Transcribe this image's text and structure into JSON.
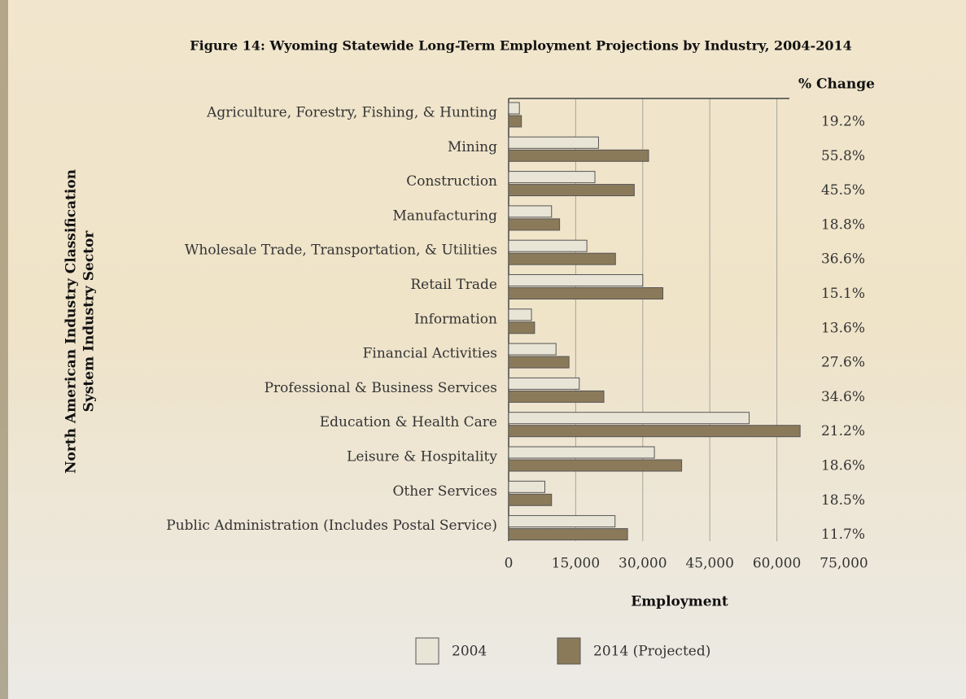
{
  "chart_data": {
    "type": "hbar",
    "title": "Figure 14: Wyoming Statewide Long-Term Employment Projections by Industry, 2004-2014",
    "ylabel": [
      "North American Industry Classification",
      "System Industry Sector"
    ],
    "xlabel": "Employment",
    "pct_header": "% Change",
    "categories": [
      "Agriculture, Forestry, Fishing, & Hunting",
      "Mining",
      "Construction",
      "Manufacturing",
      "Wholesale Trade, Transportation, & Utilities",
      "Retail Trade",
      "Information",
      "Financial Activities",
      "Professional & Business Services",
      "Education & Health Care",
      "Leisure & Hospitality",
      "Other Services",
      "Public Administration (Includes Postal Service)"
    ],
    "series": [
      {
        "name": "2004",
        "color": "#e9e5d6",
        "values": [
          2400,
          20100,
          19300,
          9600,
          17500,
          30000,
          5100,
          10600,
          15800,
          53800,
          32600,
          8100,
          23800
        ]
      },
      {
        "name": "2014 (Projected)",
        "color": "#8b7a5a",
        "values": [
          2860,
          31300,
          28100,
          11400,
          23900,
          34500,
          5800,
          13500,
          21300,
          65200,
          38700,
          9600,
          26600
        ]
      }
    ],
    "pct_change": [
      "19.2%",
      "55.8%",
      "45.5%",
      "18.8%",
      "36.6%",
      "15.1%",
      "13.6%",
      "27.6%",
      "34.6%",
      "21.2%",
      "18.6%",
      "18.5%",
      "11.7%"
    ],
    "xlim": [
      0,
      75000
    ],
    "xticks": [
      0,
      {
        "value": 15000,
        "label": "15,000"
      },
      {
        "value": 30000,
        "label": "30,000"
      },
      {
        "value": 45000,
        "label": "45,000"
      },
      {
        "value": 60000,
        "label": "60,000"
      },
      {
        "value": 75000,
        "label": "75,000"
      }
    ],
    "grid": true
  }
}
